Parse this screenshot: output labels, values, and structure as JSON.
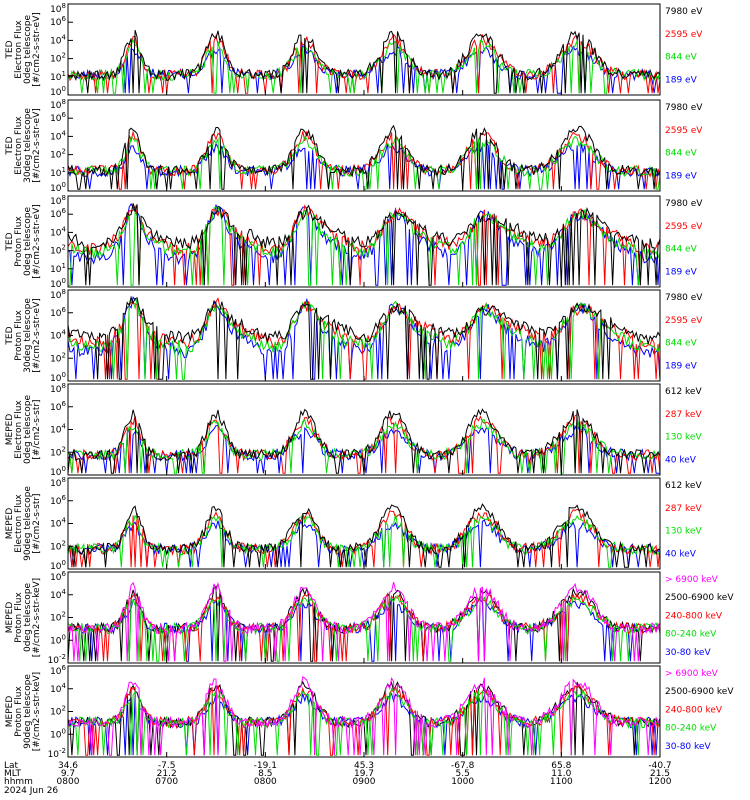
{
  "chart_data": {
    "type": "line",
    "x_rows": {
      "labels": [
        "Lat",
        "MLT",
        "hhmm",
        "2024 Jun 26"
      ],
      "lat": [
        "34.6",
        "-7.5",
        "-19.1",
        "45.3",
        "-67.8",
        "65.8",
        "-40.7"
      ],
      "mlt": [
        "9.7",
        "21.2",
        "8.5",
        "19.7",
        "5.5",
        "11.0",
        "21.5"
      ],
      "hhmm": [
        "0800",
        "0700",
        "0800",
        "0900",
        "1000",
        "1100",
        "1200"
      ]
    },
    "panels": [
      {
        "ylabel": [
          "TED",
          "Electron Flux",
          "0deg telescope",
          "[#/cm2-s-str-eV]"
        ],
        "yticks": [
          "10^8",
          "10^6",
          "10^4",
          "10^2",
          "10^1",
          "10^0"
        ],
        "ylog": true,
        "series": [
          {
            "name": "7980 eV",
            "color": "#000000"
          },
          {
            "name": "2595 eV",
            "color": "#ff0000"
          },
          {
            "name": "844 eV",
            "color": "#00dd00"
          },
          {
            "name": "189 eV",
            "color": "#0000ff"
          }
        ]
      },
      {
        "ylabel": [
          "TED",
          "Electron Flux",
          "30deg telescope",
          "[#/cm2-s-str-eV]"
        ],
        "yticks": [
          "10^8",
          "10^6",
          "10^4",
          "10^2",
          "10^1",
          "10^0"
        ],
        "ylog": true,
        "series": [
          {
            "name": "7980 eV",
            "color": "#000000"
          },
          {
            "name": "2595 eV",
            "color": "#ff0000"
          },
          {
            "name": "844 eV",
            "color": "#00dd00"
          },
          {
            "name": "189 eV",
            "color": "#0000ff"
          }
        ]
      },
      {
        "ylabel": [
          "TED",
          "Proton Flux",
          "0deg telescope",
          "[#/cm2-s-str-eV]"
        ],
        "yticks": [
          "10^8",
          "10^6",
          "10^4",
          "10^2",
          "10^1",
          "10^0"
        ],
        "ylog": true,
        "series": [
          {
            "name": "7980 eV",
            "color": "#000000"
          },
          {
            "name": "2595 eV",
            "color": "#ff0000"
          },
          {
            "name": "844 eV",
            "color": "#00dd00"
          },
          {
            "name": "189 eV",
            "color": "#0000ff"
          }
        ]
      },
      {
        "ylabel": [
          "TED",
          "Proton Flux",
          "30deg telescope",
          "[#/cm2-s-str-eV]"
        ],
        "yticks": [
          "10^8",
          "10^6",
          "10^4",
          "10^2",
          "10^0"
        ],
        "ylog": true,
        "series": [
          {
            "name": "7980 eV",
            "color": "#000000"
          },
          {
            "name": "2595 eV",
            "color": "#ff0000"
          },
          {
            "name": "844 eV",
            "color": "#00dd00"
          },
          {
            "name": "189 eV",
            "color": "#0000ff"
          }
        ]
      },
      {
        "ylabel": [
          "MEPED",
          "Electron Flux",
          "0deg telescope",
          "[#/cm2-s-str]"
        ],
        "yticks": [
          "10^8",
          "10^6",
          "10^4",
          "10^2",
          "10^0"
        ],
        "ylog": true,
        "series": [
          {
            "name": "612 keV",
            "color": "#000000"
          },
          {
            "name": "287 keV",
            "color": "#ff0000"
          },
          {
            "name": "130 keV",
            "color": "#00dd00"
          },
          {
            "name": "40 keV",
            "color": "#0000ff"
          }
        ]
      },
      {
        "ylabel": [
          "MEPED",
          "Electron Flux",
          "90deg telescope",
          "[#/cm2-s-str]"
        ],
        "yticks": [
          "10^8",
          "10^6",
          "10^4",
          "10^2",
          "10^0"
        ],
        "ylog": true,
        "series": [
          {
            "name": "612 keV",
            "color": "#000000"
          },
          {
            "name": "287 keV",
            "color": "#ff0000"
          },
          {
            "name": "130 keV",
            "color": "#00dd00"
          },
          {
            "name": "40 keV",
            "color": "#0000ff"
          }
        ]
      },
      {
        "ylabel": [
          "MEPED",
          "Proton Flux",
          "0deg telescope",
          "[#/cm2-s-str-keV]"
        ],
        "yticks": [
          "10^6",
          "10^4",
          "10^2",
          "10^0",
          "10^-2"
        ],
        "ylog": true,
        "series": [
          {
            "name": "> 6900 keV",
            "color": "#ff00ff"
          },
          {
            "name": "2500-6900 keV",
            "color": "#000000"
          },
          {
            "name": "240-800 keV",
            "color": "#ff0000"
          },
          {
            "name": "80-240 keV",
            "color": "#00dd00"
          },
          {
            "name": "30-80 keV",
            "color": "#0000ff"
          }
        ]
      },
      {
        "ylabel": [
          "MEPED",
          "Proton Flux",
          "90deg telescope",
          "[#/cm2-s-str-keV]"
        ],
        "yticks": [
          "10^6",
          "10^4",
          "10^2",
          "10^0",
          "10^-2"
        ],
        "ylog": true,
        "series": [
          {
            "name": "> 6900 keV",
            "color": "#ff00ff"
          },
          {
            "name": "2500-6900 keV",
            "color": "#000000"
          },
          {
            "name": "240-800 keV",
            "color": "#ff0000"
          },
          {
            "name": "80-240 keV",
            "color": "#00dd00"
          },
          {
            "name": "30-80 keV",
            "color": "#0000ff"
          }
        ]
      }
    ]
  }
}
